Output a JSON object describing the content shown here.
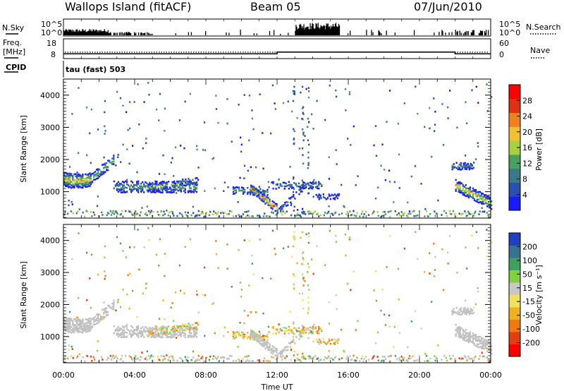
{
  "header": {
    "station": "Wallops Island (fitACF)",
    "beam": "Beam 05",
    "date": "07/Jun/2010"
  },
  "side_labels": {
    "nsky": "N.Sky",
    "nsearch": "N.Search",
    "freq_line1": "Freq.",
    "freq_line2": "[MHz]",
    "nave": "Nave",
    "cpid": "CPID",
    "cpid_value": "tau (fast) 503"
  },
  "strip_ticks": {
    "noise_left": [
      "10^5",
      "10^0"
    ],
    "noise_right": [
      "10^5",
      "10^0"
    ],
    "freq_left": [
      "18",
      "8"
    ],
    "nave_right": [
      "60",
      "0"
    ]
  },
  "colors": {
    "power_scale": [
      "#1a1aff",
      "#2a4fb0",
      "#3a7a88",
      "#4aa060",
      "#a8d040",
      "#f0c030",
      "#f08020",
      "#e03010",
      "#ff0000"
    ],
    "velocity_scale": [
      "#ff0000",
      "#e04010",
      "#f07a10",
      "#f0b020",
      "#f0e060",
      "#c8c8c8",
      "#80d040",
      "#40a060",
      "#3a7090",
      "#2040c0"
    ],
    "ground_scatter": "#c0c0c0"
  },
  "chart_data": [
    {
      "type": "heatmap",
      "name": "power-panel",
      "xlabel": "",
      "ylabel": "Slant Range [km]",
      "xlim": [
        0,
        24
      ],
      "ylim": [
        180,
        4500
      ],
      "yticks": [
        1000,
        2000,
        3000,
        4000
      ],
      "colorbar_label": "Power [dB]",
      "colorbar_ticks": [
        "4",
        "8",
        "12",
        "16",
        "20",
        "24",
        "28"
      ],
      "colorbar_range": [
        0,
        30
      ]
    },
    {
      "type": "heatmap",
      "name": "velocity-panel",
      "xlabel": "Time UT",
      "ylabel": "Slant Range [km]",
      "xlim": [
        0,
        24
      ],
      "ylim": [
        180,
        4500
      ],
      "xticks": [
        "00:00",
        "04:00",
        "08:00",
        "12:00",
        "16:00",
        "20:00",
        "00:00"
      ],
      "yticks": [
        1000,
        2000,
        3000,
        4000
      ],
      "colorbar_label": "Velocity [m s⁻¹]",
      "colorbar_ticks": [
        "-200",
        "-100",
        "-50",
        "-15",
        "15",
        "50",
        "100",
        "200"
      ]
    },
    {
      "type": "line",
      "name": "freq-nave-strip",
      "series": [
        {
          "x": [
            0,
            12,
            12,
            22,
            22,
            24
          ],
          "y": [
            10,
            10,
            11,
            11,
            10,
            10
          ]
        }
      ],
      "ylim": [
        8,
        18
      ],
      "xlim": [
        0,
        24
      ]
    }
  ]
}
